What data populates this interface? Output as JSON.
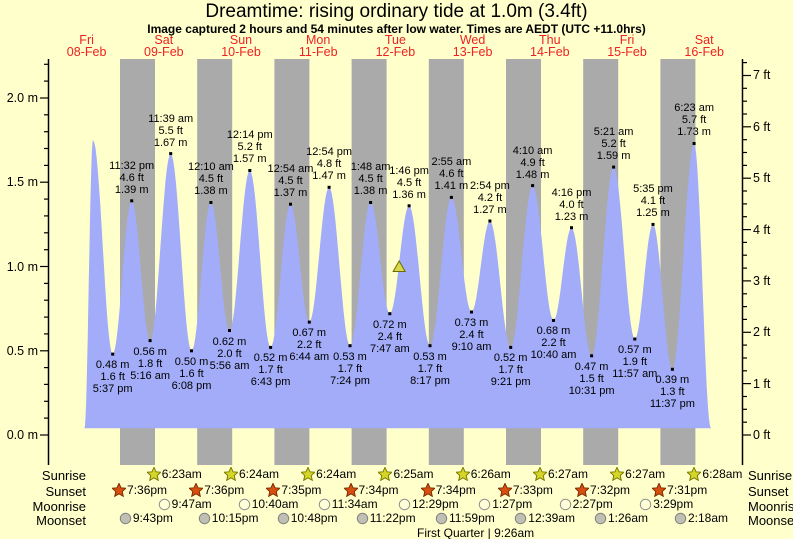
{
  "title": "Dreamtime: rising  ordinary tide at 1.0m (3.4ft)",
  "subtitle": "Image captured 2 hours and 54 minutes after low water. Times are AEDT (UTC +11.0hrs)",
  "days": [
    {
      "name": "Fri",
      "date": "08-Feb"
    },
    {
      "name": "Sat",
      "date": "09-Feb"
    },
    {
      "name": "Sun",
      "date": "10-Feb"
    },
    {
      "name": "Mon",
      "date": "11-Feb"
    },
    {
      "name": "Tue",
      "date": "12-Feb"
    },
    {
      "name": "Wed",
      "date": "13-Feb"
    },
    {
      "name": "Thu",
      "date": "14-Feb"
    },
    {
      "name": "Fri",
      "date": "15-Feb"
    },
    {
      "name": "Sat",
      "date": "16-Feb"
    }
  ],
  "colors": {
    "background": "#ffffcc",
    "night_band": "#aaaaaa",
    "tide_fill": "#a2acf8",
    "day_label": "#ee2222",
    "axis": "#000000",
    "sunrise_fill": "#d6d62a",
    "sunrise_stroke": "#7a7a00",
    "sunset_fill": "#d94f10",
    "sunset_stroke": "#7a2d00",
    "moonrise_fill": "#ffffd8",
    "moonrise_stroke": "#909090",
    "moonset_fill": "#bfbfb4",
    "moonset_stroke": "#808080",
    "marker_fill": "#d8d848",
    "marker_stroke": "#6b6b00"
  },
  "chart_data": {
    "type": "area",
    "title": "Dreamtime: rising  ordinary tide at 1.0m (3.4ft)",
    "left_axis": {
      "unit": "m",
      "tick_labels": [
        "0.0 m",
        "0.5 m",
        "1.0 m",
        "1.5 m",
        "2.0 m"
      ],
      "range_m": [
        0,
        2.2
      ],
      "minor_step_m": 0.1,
      "major_step_m": 0.5
    },
    "right_axis": {
      "unit": "ft",
      "tick_labels": [
        "0 ft",
        "1 ft",
        "2 ft",
        "3 ft",
        "4 ft",
        "5 ft",
        "6 ft",
        "7 ft"
      ],
      "range_ft": [
        0,
        7.25
      ],
      "minor_step_ft": 0.25,
      "major_step_ft": 1
    },
    "current_marker": {
      "day": 4,
      "time": "10:41 am",
      "height_m": 1.0,
      "note": "rising tide at 1.0m (3.4ft), 2h54m after low water"
    },
    "curve_endpoints": {
      "start_t_hours": 8.85,
      "end_t_hours": 203.6,
      "baseline_m": 0.04
    },
    "unlabeled_events": [
      {
        "day": 0,
        "time": "11:30 am",
        "kind": "high",
        "height": 1.75
      }
    ],
    "tide_events": [
      {
        "day": 0,
        "kind": "low",
        "time": "5:37 pm",
        "ft": "1.6 ft",
        "m": "0.48 m",
        "height": 0.48
      },
      {
        "day": 0,
        "kind": "high",
        "time": "11:32 pm",
        "ft": "4.6 ft",
        "m": "1.39 m",
        "height": 1.39
      },
      {
        "day": 1,
        "kind": "low",
        "time": "5:16 am",
        "ft": "1.8 ft",
        "m": "0.56 m",
        "height": 0.56
      },
      {
        "day": 1,
        "kind": "high",
        "time": "11:39 am",
        "ft": "5.5 ft",
        "m": "1.67 m",
        "height": 1.67
      },
      {
        "day": 1,
        "kind": "low",
        "time": "6:08 pm",
        "ft": "1.6 ft",
        "m": "0.50 m",
        "height": 0.5
      },
      {
        "day": 2,
        "kind": "high",
        "time": "12:10 am",
        "ft": "4.5 ft",
        "m": "1.38 m",
        "height": 1.38
      },
      {
        "day": 2,
        "kind": "low",
        "time": "5:56 am",
        "ft": "2.0 ft",
        "m": "0.62 m",
        "height": 0.62
      },
      {
        "day": 2,
        "kind": "high",
        "time": "12:14 pm",
        "ft": "5.2 ft",
        "m": "1.57 m",
        "height": 1.57
      },
      {
        "day": 2,
        "kind": "low",
        "time": "6:43 pm",
        "ft": "1.7 ft",
        "m": "0.52 m",
        "height": 0.52
      },
      {
        "day": 3,
        "kind": "high",
        "time": "12:54 am",
        "ft": "4.5 ft",
        "m": "1.37 m",
        "height": 1.37
      },
      {
        "day": 3,
        "kind": "low",
        "time": "6:44 am",
        "ft": "2.2 ft",
        "m": "0.67 m",
        "height": 0.67
      },
      {
        "day": 3,
        "kind": "high",
        "time": "12:54 pm",
        "ft": "4.8 ft",
        "m": "1.47 m",
        "height": 1.47
      },
      {
        "day": 3,
        "kind": "low",
        "time": "7:24 pm",
        "ft": "1.7 ft",
        "m": "0.53 m",
        "height": 0.53
      },
      {
        "day": 4,
        "kind": "high",
        "time": "1:48 am",
        "ft": "4.5 ft",
        "m": "1.38 m",
        "height": 1.38
      },
      {
        "day": 4,
        "kind": "low",
        "time": "7:47 am",
        "ft": "2.4 ft",
        "m": "0.72 m",
        "height": 0.72
      },
      {
        "day": 4,
        "kind": "high",
        "time": "1:46 pm",
        "ft": "4.5 ft",
        "m": "1.36 m",
        "height": 1.36
      },
      {
        "day": 4,
        "kind": "low",
        "time": "8:17 pm",
        "ft": "1.7 ft",
        "m": "0.53 m",
        "height": 0.53
      },
      {
        "day": 5,
        "kind": "high",
        "time": "2:55 am",
        "ft": "4.6 ft",
        "m": "1.41 m",
        "height": 1.41
      },
      {
        "day": 5,
        "kind": "low",
        "time": "9:10 am",
        "ft": "2.4 ft",
        "m": "0.73 m",
        "height": 0.73
      },
      {
        "day": 5,
        "kind": "high",
        "time": "2:54 pm",
        "ft": "4.2 ft",
        "m": "1.27 m",
        "height": 1.27
      },
      {
        "day": 5,
        "kind": "low",
        "time": "9:21 pm",
        "ft": "1.7 ft",
        "m": "0.52 m",
        "height": 0.52
      },
      {
        "day": 6,
        "kind": "high",
        "time": "4:10 am",
        "ft": "4.9 ft",
        "m": "1.48 m",
        "height": 1.48
      },
      {
        "day": 6,
        "kind": "low",
        "time": "10:40 am",
        "ft": "2.2 ft",
        "m": "0.68 m",
        "height": 0.68
      },
      {
        "day": 6,
        "kind": "high",
        "time": "4:16 pm",
        "ft": "4.0 ft",
        "m": "1.23 m",
        "height": 1.23
      },
      {
        "day": 6,
        "kind": "low",
        "time": "10:31 pm",
        "ft": "1.5 ft",
        "m": "0.47 m",
        "height": 0.47
      },
      {
        "day": 7,
        "kind": "high",
        "time": "5:21 am",
        "ft": "5.2 ft",
        "m": "1.59 m",
        "height": 1.59
      },
      {
        "day": 7,
        "kind": "low",
        "time": "11:57 am",
        "ft": "1.9 ft",
        "m": "0.57 m",
        "height": 0.57
      },
      {
        "day": 7,
        "kind": "high",
        "time": "5:35 pm",
        "ft": "4.1 ft",
        "m": "1.25 m",
        "height": 1.25
      },
      {
        "day": 7,
        "kind": "low",
        "time": "11:37 pm",
        "ft": "1.3 ft",
        "m": "0.39 m",
        "height": 0.39
      },
      {
        "day": 8,
        "kind": "high",
        "time": "6:23 am",
        "ft": "5.7 ft",
        "m": "1.73 m",
        "height": 1.73
      }
    ]
  },
  "astro": {
    "rows": [
      {
        "label": "Sunrise",
        "icon": "sunrise-star-icon",
        "shape": "star",
        "fill": "sunrise_fill",
        "stroke": "sunrise_stroke",
        "events": [
          {
            "day": 1,
            "time": "6:23am"
          },
          {
            "day": 2,
            "time": "6:24am"
          },
          {
            "day": 3,
            "time": "6:24am"
          },
          {
            "day": 4,
            "time": "6:25am"
          },
          {
            "day": 5,
            "time": "6:26am"
          },
          {
            "day": 6,
            "time": "6:27am"
          },
          {
            "day": 7,
            "time": "6:27am"
          },
          {
            "day": 8,
            "time": "6:28am"
          }
        ]
      },
      {
        "label": "Sunset",
        "icon": "sunset-star-icon",
        "shape": "star",
        "fill": "sunset_fill",
        "stroke": "sunset_stroke",
        "events": [
          {
            "day": 0,
            "time": "7:36pm"
          },
          {
            "day": 1,
            "time": "7:36pm"
          },
          {
            "day": 2,
            "time": "7:35pm"
          },
          {
            "day": 3,
            "time": "7:34pm"
          },
          {
            "day": 4,
            "time": "7:34pm"
          },
          {
            "day": 5,
            "time": "7:33pm"
          },
          {
            "day": 6,
            "time": "7:32pm"
          },
          {
            "day": 7,
            "time": "7:31pm"
          }
        ]
      },
      {
        "label": "Moonrise",
        "icon": "moonrise-circle-icon",
        "shape": "circle",
        "fill": "moonrise_fill",
        "stroke": "moonrise_stroke",
        "events": [
          {
            "day": 1,
            "time": "9:47am"
          },
          {
            "day": 2,
            "time": "10:40am"
          },
          {
            "day": 3,
            "time": "11:34am"
          },
          {
            "day": 4,
            "time": "12:29pm"
          },
          {
            "day": 5,
            "time": "1:27pm"
          },
          {
            "day": 6,
            "time": "2:27pm"
          },
          {
            "day": 7,
            "time": "3:29pm"
          }
        ]
      },
      {
        "label": "Moonset",
        "icon": "moonset-circle-icon",
        "shape": "circle",
        "fill": "moonset_fill",
        "stroke": "moonset_stroke",
        "events": [
          {
            "day": 0,
            "time": "9:43pm"
          },
          {
            "day": 1,
            "time": "10:15pm"
          },
          {
            "day": 2,
            "time": "10:48pm"
          },
          {
            "day": 3,
            "time": "11:22pm"
          },
          {
            "day": 4,
            "time": "11:59pm"
          },
          {
            "day": 6,
            "time": "12:39am"
          },
          {
            "day": 7,
            "time": "1:26am"
          },
          {
            "day": 8,
            "time": "2:18am"
          }
        ]
      }
    ],
    "moon_phase": "First Quarter | 9:26am"
  }
}
